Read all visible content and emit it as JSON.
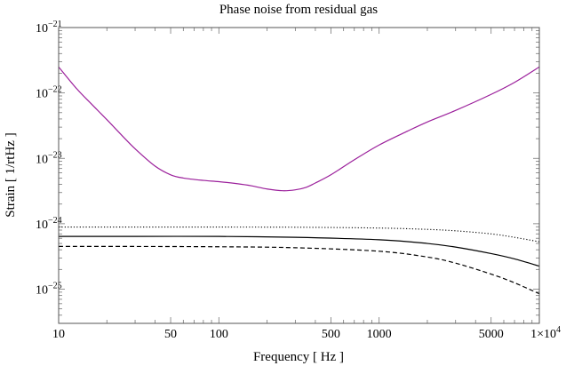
{
  "chart_data": {
    "type": "line",
    "title": "Phase noise from residual gas",
    "xlabel": "Frequency [ Hz ]",
    "ylabel": "Strain [ 1/rtHz ]",
    "xscale": "log",
    "yscale": "log",
    "xlim": [
      10,
      10000
    ],
    "ylim": [
      3e-26,
      1e-21
    ],
    "grid": false,
    "x_ticks": [
      {
        "value": 10,
        "label": "10"
      },
      {
        "value": 50,
        "label": "50"
      },
      {
        "value": 100,
        "label": "100"
      },
      {
        "value": 500,
        "label": "500"
      },
      {
        "value": 1000,
        "label": "1000"
      },
      {
        "value": 5000,
        "label": "5000"
      },
      {
        "value": 10000,
        "label": "1×10",
        "sup": "4"
      }
    ],
    "y_ticks": [
      {
        "value": 1e-21,
        "label": "10",
        "sup": "−21"
      },
      {
        "value": 1e-22,
        "label": "10",
        "sup": "−22"
      },
      {
        "value": 1e-23,
        "label": "10",
        "sup": "−23"
      },
      {
        "value": 1e-24,
        "label": "10",
        "sup": "−24"
      },
      {
        "value": 1e-25,
        "label": "10",
        "sup": "−25"
      }
    ],
    "series": [
      {
        "style": "solid",
        "color": "#9b1f9b",
        "x": [
          10,
          13,
          16,
          20,
          25,
          30,
          40,
          50,
          60,
          80,
          100,
          130,
          160,
          200,
          250,
          300,
          350,
          400,
          500,
          700,
          1000,
          1500,
          2000,
          3000,
          5000,
          7000,
          10000
        ],
        "y": [
          2.5e-22,
          1.15e-22,
          6.8e-23,
          3.9e-23,
          2.2e-23,
          1.4e-23,
          7.6e-24,
          5.6e-24,
          5e-24,
          4.6e-24,
          4.4e-24,
          4.1e-24,
          3.8e-24,
          3.4e-24,
          3.2e-24,
          3.3e-24,
          3.6e-24,
          4.2e-24,
          5.6e-24,
          9.5e-24,
          1.6e-23,
          2.6e-23,
          3.6e-23,
          5.4e-23,
          9.5e-23,
          1.45e-22,
          2.5e-22
        ]
      },
      {
        "style": "dotted",
        "color": "#000000",
        "x": [
          10,
          30,
          100,
          300,
          1000,
          2000,
          3000,
          5000,
          7000,
          10000
        ],
        "y": [
          8.9e-25,
          8.9e-25,
          8.9e-25,
          8.85e-25,
          8.6e-25,
          8.2e-25,
          7.8e-25,
          7e-25,
          6.2e-25,
          5.3e-25
        ]
      },
      {
        "style": "solid",
        "color": "#000000",
        "x": [
          10,
          30,
          100,
          300,
          1000,
          2000,
          3000,
          5000,
          7000,
          10000
        ],
        "y": [
          6.4e-25,
          6.4e-25,
          6.4e-25,
          6.2e-25,
          5.7e-25,
          5e-25,
          4.4e-25,
          3.5e-25,
          2.9e-25,
          2.25e-25
        ]
      },
      {
        "style": "dashed",
        "color": "#000000",
        "x": [
          10,
          30,
          100,
          300,
          1000,
          2000,
          3000,
          5000,
          7000,
          10000
        ],
        "y": [
          4.5e-25,
          4.5e-25,
          4.45e-25,
          4.3e-25,
          3.8e-25,
          3.1e-25,
          2.5e-25,
          1.7e-25,
          1.25e-25,
          8.5e-26
        ]
      }
    ]
  }
}
